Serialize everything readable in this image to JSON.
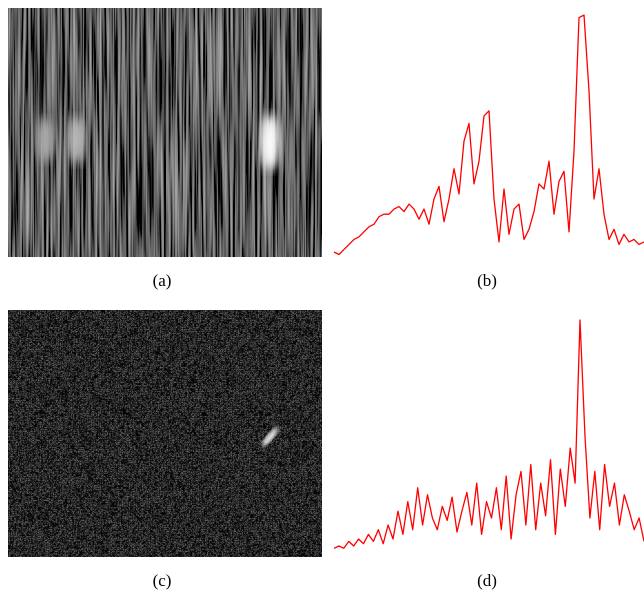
{
  "figure": {
    "panels": [
      {
        "label": "(a)"
      },
      {
        "label": "(b)"
      },
      {
        "label": "(c)"
      },
      {
        "label": "(d)"
      }
    ]
  },
  "chart_data": [
    {
      "type": "line",
      "color": "#ff0000",
      "ylim": [
        0,
        1
      ],
      "values": [
        0.02,
        0.01,
        0.03,
        0.05,
        0.07,
        0.08,
        0.1,
        0.12,
        0.13,
        0.16,
        0.17,
        0.17,
        0.19,
        0.2,
        0.18,
        0.21,
        0.19,
        0.15,
        0.19,
        0.13,
        0.23,
        0.28,
        0.14,
        0.23,
        0.35,
        0.25,
        0.46,
        0.53,
        0.29,
        0.38,
        0.56,
        0.58,
        0.23,
        0.06,
        0.27,
        0.09,
        0.19,
        0.21,
        0.07,
        0.11,
        0.18,
        0.29,
        0.27,
        0.38,
        0.17,
        0.3,
        0.34,
        0.1,
        0.42,
        0.95,
        0.96,
        0.66,
        0.23,
        0.35,
        0.17,
        0.07,
        0.11,
        0.05,
        0.09,
        0.06,
        0.07,
        0.05,
        0.06
      ]
    },
    {
      "type": "line",
      "color": "#ff0000",
      "ylim": [
        0,
        1
      ],
      "values": [
        0.02,
        0.03,
        0.02,
        0.05,
        0.03,
        0.06,
        0.04,
        0.08,
        0.05,
        0.1,
        0.04,
        0.12,
        0.06,
        0.18,
        0.08,
        0.22,
        0.1,
        0.28,
        0.12,
        0.25,
        0.15,
        0.1,
        0.2,
        0.14,
        0.24,
        0.09,
        0.18,
        0.26,
        0.12,
        0.3,
        0.08,
        0.22,
        0.15,
        0.28,
        0.1,
        0.33,
        0.06,
        0.25,
        0.35,
        0.12,
        0.38,
        0.1,
        0.3,
        0.16,
        0.4,
        0.08,
        0.36,
        0.2,
        0.45,
        0.3,
        1.0,
        0.5,
        0.15,
        0.35,
        0.1,
        0.38,
        0.2,
        0.3,
        0.12,
        0.25,
        0.18,
        0.1,
        0.15,
        0.05
      ]
    }
  ]
}
